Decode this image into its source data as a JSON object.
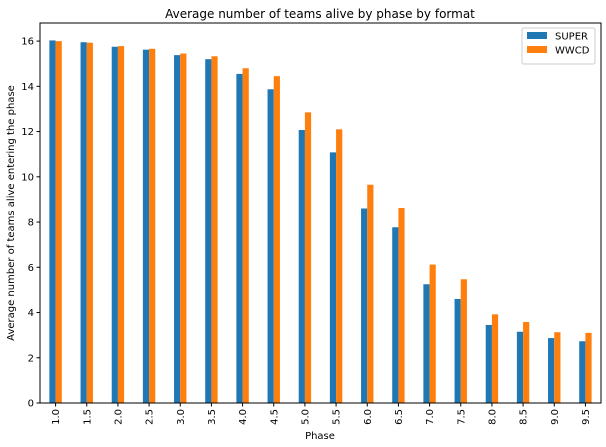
{
  "chart_data": {
    "type": "bar",
    "title": "Average number of teams alive by phase by format",
    "xlabel": "Phase",
    "ylabel": "Average number of teams alive entering the phase",
    "categories": [
      "1.0",
      "1.5",
      "2.0",
      "2.5",
      "3.0",
      "3.5",
      "4.0",
      "4.5",
      "5.0",
      "5.5",
      "6.0",
      "6.5",
      "7.0",
      "7.5",
      "8.0",
      "8.5",
      "9.0",
      "9.5"
    ],
    "series": [
      {
        "name": "SUPER",
        "color": "#1f77b4",
        "values": [
          16.03,
          15.95,
          15.75,
          15.62,
          15.38,
          15.2,
          14.55,
          13.87,
          12.07,
          11.08,
          8.6,
          7.77,
          5.25,
          4.6,
          3.45,
          3.15,
          2.87,
          2.73
        ]
      },
      {
        "name": "WWCD",
        "color": "#ff7f0e",
        "values": [
          16.0,
          15.93,
          15.78,
          15.66,
          15.45,
          15.33,
          14.8,
          14.45,
          12.85,
          12.1,
          9.65,
          8.62,
          6.12,
          5.47,
          3.92,
          3.58,
          3.13,
          3.1
        ]
      }
    ],
    "ylim": [
      0,
      16.8
    ],
    "yticks": [
      0,
      2,
      4,
      6,
      8,
      10,
      12,
      14,
      16
    ],
    "grid": false,
    "legend_position": "top-right"
  }
}
